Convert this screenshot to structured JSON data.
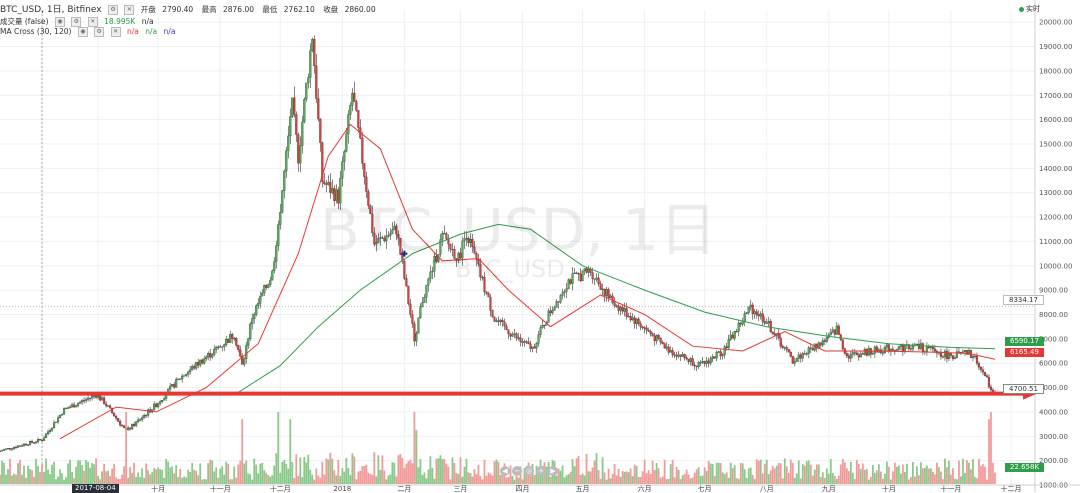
{
  "header": {
    "symbol": "BTC_USD, 1日, Bitfinex",
    "open_label": "开盘",
    "open": "2790.40",
    "high_label": "最高",
    "high": "2876.00",
    "low_label": "最低",
    "low": "2762.10",
    "close_label": "收盘",
    "close": "2860.00",
    "volume_label": "成交量 (false)",
    "volume_value": "18.995K",
    "volume_na": "n/a",
    "ma_label": "MA Cross (30, 120)",
    "ma_na1": "n/a",
    "ma_na2": "n/a",
    "ma_na3": "n/a",
    "live_label": "实时"
  },
  "watermark": {
    "main": "BTC_USD, 1日",
    "sub": "BTC_USD"
  },
  "colors": {
    "up": "#4caf50",
    "down": "#e53935",
    "up_vol": "#8bc98a",
    "down_vol": "#f19a9a",
    "ma_fast": "#e53935",
    "ma_slow": "#2e9e4a",
    "arrow": "#e53935"
  },
  "price_tags": {
    "p8334": "8334.17",
    "ma_slow_val": "6590.17",
    "ma_fast_val": "6165.49",
    "last": "4700.51",
    "vol_last": "22.658K"
  },
  "date_marker": "2017-08-04",
  "chart_data": {
    "type": "candlestick",
    "title": "BTC_USD, 1日, Bitfinex",
    "ylim": [
      1000,
      20500
    ],
    "y_ticks": [
      1000,
      2000,
      3000,
      4000,
      5000,
      6000,
      7000,
      8000,
      9000,
      10000,
      11000,
      12000,
      13000,
      14000,
      15000,
      16000,
      17000,
      18000,
      19000,
      20000
    ],
    "y_tick_labels": [
      "1000.00",
      "2000.00",
      "3000.00",
      "4000.00",
      "5000.00",
      "6000.00",
      "7000.00",
      "8000.00",
      "9000.00",
      "10000.00",
      "11000.00",
      "12000.00",
      "13000.00",
      "14000.00",
      "15000.00",
      "16000.00",
      "17000.00",
      "18000.00",
      "19000.00",
      "20000.00"
    ],
    "x_tick_labels": [
      "2017-08-04",
      "九月",
      "十月",
      "十一月",
      "十二月",
      "2018",
      "二月",
      "三月",
      "四月",
      "五月",
      "六月",
      "七月",
      "八月",
      "九月",
      "十月",
      "十一月",
      "十二月"
    ],
    "x_tick_dates": [
      "2017-08-04",
      "2017-09-01",
      "2017-10-01",
      "2017-11-01",
      "2017-12-01",
      "2018-01-01",
      "2018-02-01",
      "2018-03-01",
      "2018-04-01",
      "2018-05-01",
      "2018-06-01",
      "2018-07-01",
      "2018-08-01",
      "2018-09-01",
      "2018-10-01",
      "2018-11-01",
      "2018-12-01"
    ],
    "x_range": [
      "2017-07-14",
      "2018-12-13"
    ],
    "price_keypoints": [
      [
        "2017-07-14",
        2400
      ],
      [
        "2017-07-25",
        2650
      ],
      [
        "2017-08-04",
        2860
      ],
      [
        "2017-08-15",
        4100
      ],
      [
        "2017-08-31",
        4700
      ],
      [
        "2017-09-04",
        4400
      ],
      [
        "2017-09-15",
        3200
      ],
      [
        "2017-09-30",
        4300
      ],
      [
        "2017-10-12",
        5400
      ],
      [
        "2017-10-21",
        6000
      ],
      [
        "2017-11-01",
        6700
      ],
      [
        "2017-11-08",
        7200
      ],
      [
        "2017-11-12",
        5900
      ],
      [
        "2017-11-17",
        7900
      ],
      [
        "2017-11-27",
        9700
      ],
      [
        "2017-12-07",
        16500
      ],
      [
        "2017-12-10",
        14500
      ],
      [
        "2017-12-17",
        19500
      ],
      [
        "2017-12-22",
        13500
      ],
      [
        "2017-12-30",
        12800
      ],
      [
        "2018-01-06",
        17100
      ],
      [
        "2018-01-12",
        13800
      ],
      [
        "2018-01-17",
        10900
      ],
      [
        "2018-01-28",
        11500
      ],
      [
        "2018-02-06",
        7000
      ],
      [
        "2018-02-10",
        8600
      ],
      [
        "2018-02-20",
        11200
      ],
      [
        "2018-02-28",
        10300
      ],
      [
        "2018-03-04",
        11400
      ],
      [
        "2018-03-18",
        7800
      ],
      [
        "2018-03-31",
        6900
      ],
      [
        "2018-04-06",
        6600
      ],
      [
        "2018-04-14",
        8000
      ],
      [
        "2018-04-24",
        9400
      ],
      [
        "2018-05-05",
        9800
      ],
      [
        "2018-05-15",
        8600
      ],
      [
        "2018-05-31",
        7500
      ],
      [
        "2018-06-12",
        6600
      ],
      [
        "2018-06-29",
        5900
      ],
      [
        "2018-07-10",
        6500
      ],
      [
        "2018-07-24",
        8300
      ],
      [
        "2018-07-31",
        7800
      ],
      [
        "2018-08-14",
        6100
      ],
      [
        "2018-08-31",
        7000
      ],
      [
        "2018-09-05",
        7400
      ],
      [
        "2018-09-10",
        6300
      ],
      [
        "2018-09-30",
        6600
      ],
      [
        "2018-10-15",
        6700
      ],
      [
        "2018-10-31",
        6300
      ],
      [
        "2018-11-10",
        6400
      ],
      [
        "2018-11-14",
        6100
      ],
      [
        "2018-11-19",
        5300
      ],
      [
        "2018-11-23",
        4700
      ]
    ],
    "ma_fast": {
      "name": "MA 30",
      "points": [
        [
          "2017-08-13",
          2900
        ],
        [
          "2017-09-10",
          4200
        ],
        [
          "2017-09-30",
          4000
        ],
        [
          "2017-10-25",
          5000
        ],
        [
          "2017-11-20",
          6800
        ],
        [
          "2017-12-10",
          10500
        ],
        [
          "2017-12-25",
          14500
        ],
        [
          "2018-01-05",
          15800
        ],
        [
          "2018-01-20",
          14800
        ],
        [
          "2018-02-05",
          11500
        ],
        [
          "2018-02-20",
          10200
        ],
        [
          "2018-03-10",
          10300
        ],
        [
          "2018-03-25",
          9000
        ],
        [
          "2018-04-15",
          7500
        ],
        [
          "2018-05-10",
          8800
        ],
        [
          "2018-06-01",
          8000
        ],
        [
          "2018-06-25",
          6700
        ],
        [
          "2018-07-20",
          6500
        ],
        [
          "2018-08-10",
          7300
        ],
        [
          "2018-08-30",
          6500
        ],
        [
          "2018-09-25",
          6500
        ],
        [
          "2018-10-25",
          6450
        ],
        [
          "2018-11-10",
          6400
        ],
        [
          "2018-11-23",
          6165
        ]
      ]
    },
    "ma_slow": {
      "name": "MA 120",
      "points": [
        [
          "2017-11-10",
          4800
        ],
        [
          "2017-12-01",
          5900
        ],
        [
          "2017-12-20",
          7500
        ],
        [
          "2018-01-10",
          9000
        ],
        [
          "2018-02-05",
          10500
        ],
        [
          "2018-03-01",
          11300
        ],
        [
          "2018-03-20",
          11700
        ],
        [
          "2018-04-05",
          11500
        ],
        [
          "2018-05-01",
          10000
        ],
        [
          "2018-06-01",
          9000
        ],
        [
          "2018-07-01",
          8100
        ],
        [
          "2018-08-01",
          7500
        ],
        [
          "2018-09-01",
          7100
        ],
        [
          "2018-10-01",
          6800
        ],
        [
          "2018-11-01",
          6650
        ],
        [
          "2018-11-23",
          6590
        ]
      ]
    },
    "cross_point": [
      "2018-02-01",
      10500
    ],
    "volume_spikes": [
      [
        "2017-09-15",
        1.0
      ],
      [
        "2017-11-12",
        0.9
      ],
      [
        "2017-11-30",
        1.0
      ],
      [
        "2017-12-06",
        0.9
      ],
      [
        "2018-02-06",
        1.0
      ],
      [
        "2018-02-07",
        0.75
      ],
      [
        "2018-11-20",
        0.9
      ],
      [
        "2018-11-21",
        1.0
      ]
    ]
  }
}
